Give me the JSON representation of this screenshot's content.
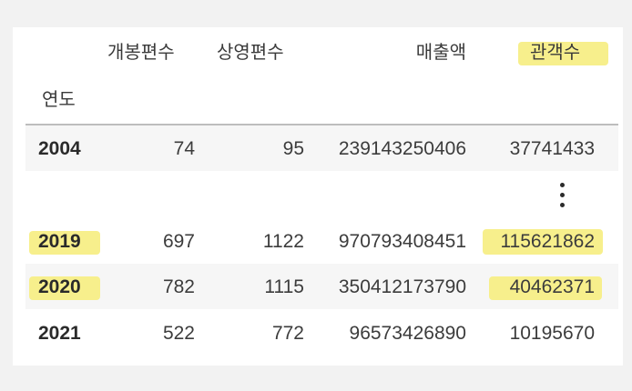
{
  "table": {
    "columns": {
      "opened": "개봉편수",
      "screened": "상영편수",
      "sales": "매출액",
      "audience": "관객수"
    },
    "index_label": "연도",
    "ellipsis": "⋮",
    "rows": [
      {
        "year": "2004",
        "opened": "74",
        "screened": "95",
        "sales": "239143250406",
        "audience": "37741433"
      },
      {
        "year": "2019",
        "opened": "697",
        "screened": "1122",
        "sales": "970793408451",
        "audience": "115621862"
      },
      {
        "year": "2020",
        "opened": "782",
        "screened": "1115",
        "sales": "350412173790",
        "audience": "40462371"
      },
      {
        "year": "2021",
        "opened": "522",
        "screened": "772",
        "sales": "96573426890",
        "audience": "10195670"
      }
    ]
  },
  "highlight_color": "#f7ef8c"
}
